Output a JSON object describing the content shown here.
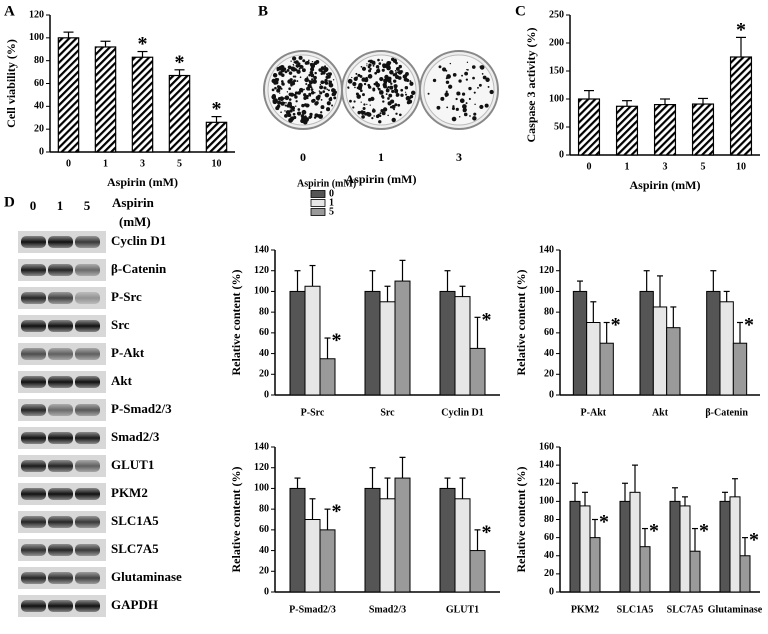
{
  "chart_data": [
    {
      "type": "bar",
      "panel": "A",
      "xlabel": "Aspirin (mM)",
      "ylabel": "Cell viability (%)",
      "categories": [
        "0",
        "1",
        "3",
        "5",
        "10"
      ],
      "values": [
        100,
        92,
        83,
        67,
        26
      ],
      "errors": [
        5,
        5,
        5,
        5,
        5
      ],
      "significance": [
        null,
        null,
        "*",
        "*",
        "*"
      ],
      "fill_pattern": "diagonal-hatch",
      "ylim": [
        0,
        120
      ],
      "yticks": [
        0,
        20,
        40,
        60,
        80,
        100,
        120
      ]
    },
    {
      "type": "bar",
      "panel": "C",
      "xlabel": "Aspirin (mM)",
      "ylabel": "Caspase 3 activity (%)",
      "categories": [
        "0",
        "1",
        "3",
        "5",
        "10"
      ],
      "values": [
        100,
        87,
        90,
        91,
        175
      ],
      "errors": [
        15,
        10,
        10,
        10,
        35
      ],
      "significance": [
        null,
        null,
        null,
        null,
        "*"
      ],
      "fill_pattern": "diagonal-hatch",
      "ylim": [
        0,
        250
      ],
      "yticks": [
        0,
        50,
        100,
        150,
        200,
        250
      ]
    },
    {
      "type": "grouped_bar",
      "ylabel": "Relative content (%)",
      "legend_title": "Aspirin (mM)",
      "categories": [
        "P-Src",
        "Src",
        "Cyclin D1"
      ],
      "series": [
        {
          "name": "0",
          "color": "#555555",
          "values": [
            100,
            100,
            100
          ],
          "errors": [
            20,
            20,
            20
          ],
          "significance": [
            null,
            null,
            null
          ]
        },
        {
          "name": "1",
          "color": "#e6e6e6",
          "values": [
            105,
            90,
            95
          ],
          "errors": [
            20,
            15,
            10
          ],
          "significance": [
            null,
            null,
            null
          ]
        },
        {
          "name": "5",
          "color": "#9a9a9a",
          "values": [
            35,
            110,
            45
          ],
          "errors": [
            20,
            20,
            30
          ],
          "significance": [
            "*",
            null,
            "*"
          ]
        }
      ],
      "ylim": [
        0,
        140
      ],
      "yticks": [
        0,
        20,
        40,
        60,
        80,
        100,
        120,
        140
      ]
    },
    {
      "type": "grouped_bar",
      "ylabel": "Relative content (%)",
      "categories": [
        "P-Akt",
        "Akt",
        "β-Catenin"
      ],
      "series": [
        {
          "color": "#555555",
          "values": [
            100,
            100,
            100
          ],
          "errors": [
            10,
            20,
            20
          ],
          "significance": [
            null,
            null,
            null
          ]
        },
        {
          "color": "#e6e6e6",
          "values": [
            70,
            85,
            90
          ],
          "errors": [
            20,
            30,
            10
          ],
          "significance": [
            null,
            null,
            null
          ]
        },
        {
          "color": "#9a9a9a",
          "values": [
            50,
            65,
            50
          ],
          "errors": [
            20,
            20,
            20
          ],
          "significance": [
            "*",
            null,
            "*"
          ]
        }
      ],
      "ylim": [
        0,
        140
      ],
      "yticks": [
        0,
        20,
        40,
        60,
        80,
        100,
        120,
        140
      ]
    },
    {
      "type": "grouped_bar",
      "ylabel": "Relative content (%)",
      "categories": [
        "P-Smad2/3",
        "Smad2/3",
        "GLUT1"
      ],
      "series": [
        {
          "color": "#555555",
          "values": [
            100,
            100,
            100
          ],
          "errors": [
            10,
            20,
            10
          ],
          "significance": [
            null,
            null,
            null
          ]
        },
        {
          "color": "#e6e6e6",
          "values": [
            70,
            90,
            90
          ],
          "errors": [
            20,
            20,
            20
          ],
          "significance": [
            null,
            null,
            null
          ]
        },
        {
          "color": "#9a9a9a",
          "values": [
            60,
            110,
            40
          ],
          "errors": [
            20,
            20,
            20
          ],
          "significance": [
            "*",
            null,
            "*"
          ]
        }
      ],
      "ylim": [
        0,
        140
      ],
      "yticks": [
        0,
        20,
        40,
        60,
        80,
        100,
        120,
        140
      ]
    },
    {
      "type": "grouped_bar",
      "ylabel": "Relative content (%)",
      "categories": [
        "PKM2",
        "SLC1A5",
        "SLC7A5",
        "Glutaminase"
      ],
      "series": [
        {
          "color": "#555555",
          "values": [
            100,
            100,
            100,
            100
          ],
          "errors": [
            20,
            20,
            15,
            10
          ],
          "significance": [
            null,
            null,
            null,
            null
          ]
        },
        {
          "color": "#e6e6e6",
          "values": [
            95,
            110,
            95,
            105
          ],
          "errors": [
            15,
            30,
            10,
            20
          ],
          "significance": [
            null,
            null,
            null,
            null
          ]
        },
        {
          "color": "#9a9a9a",
          "values": [
            60,
            50,
            45,
            40
          ],
          "errors": [
            20,
            20,
            25,
            20
          ],
          "significance": [
            "*",
            "*",
            "*",
            "*"
          ]
        }
      ],
      "ylim": [
        0,
        160
      ],
      "yticks": [
        0,
        20,
        40,
        60,
        80,
        100,
        120,
        140,
        160
      ]
    }
  ],
  "colony_assay": {
    "panel": "B",
    "labels": [
      "0",
      "1",
      "3"
    ],
    "xlabel": "Aspirin (mM)"
  },
  "western_blot": {
    "panel": "D",
    "lanes": [
      "0",
      "1",
      "5"
    ],
    "treatment": "Aspirin",
    "unit": "(mM)",
    "proteins": [
      "Cyclin D1",
      "β-Catenin",
      "P-Src",
      "Src",
      "P-Akt",
      "Akt",
      "P-Smad2/3",
      "Smad2/3",
      "GLUT1",
      "PKM2",
      "SLC1A5",
      "SLC7A5",
      "Glutaminase",
      "GAPDH"
    ]
  }
}
